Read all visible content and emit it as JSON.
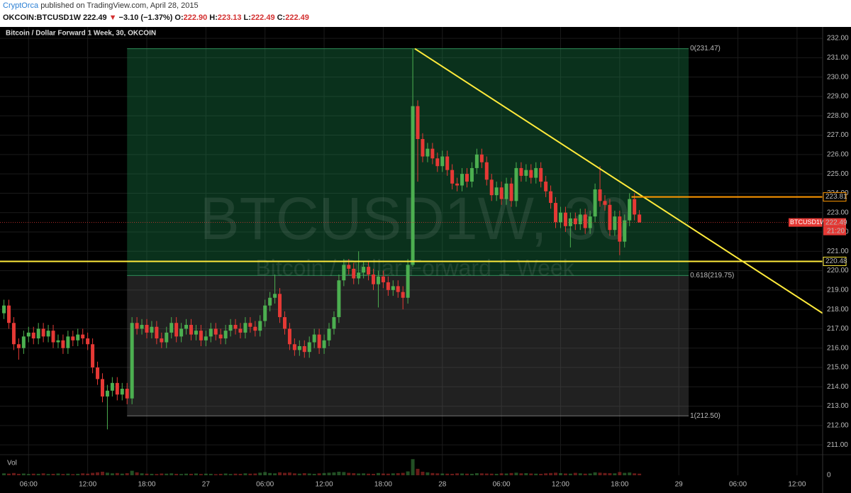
{
  "header": {
    "author": "CryptOrca",
    "published": "published on TradingView.com, April 28, 2015",
    "symbol": "OKCOIN:BTCUSD1W",
    "price": "222.49",
    "arrow": "▼",
    "change": "−3.10 (−1.37%)",
    "ohlc": [
      {
        "key": "O:",
        "value": "222.90"
      },
      {
        "key": "H:",
        "value": "223.13"
      },
      {
        "key": "L:",
        "value": "222.49"
      },
      {
        "key": "C:",
        "value": "222.49"
      }
    ]
  },
  "chart_data": {
    "type": "candlestick",
    "title": "Bitcoin / Dollar Forward 1 Week, 30, OKCOIN",
    "watermark": {
      "symbol": "BTCUSD1W, 30",
      "name": "Bitcoin / Dollar Forward 1 Week"
    },
    "up_color": "#4caf50",
    "down_color": "#e53935",
    "x": [
      3.5,
      4,
      4.5,
      5,
      5.5,
      6,
      6.5,
      7,
      7.5,
      8,
      8.5,
      9,
      9.5,
      10,
      10.5,
      11,
      11.5,
      12,
      12.5,
      13,
      13.5,
      14,
      14.5,
      15,
      15.5,
      16,
      16.5,
      17,
      17.5,
      18,
      18.5,
      19,
      19.5,
      20,
      20.5,
      21,
      21.5,
      22,
      22.5,
      23,
      23.5,
      24,
      24.5,
      25,
      25.5,
      26,
      26.5,
      27,
      27.5,
      28,
      28.5,
      29,
      29.5,
      30,
      30.5,
      31,
      31.5,
      32,
      32.5,
      33,
      33.5,
      34,
      34.5,
      35,
      35.5,
      36,
      36.5,
      37,
      37.5,
      38,
      38.5,
      39,
      39.5,
      40,
      40.5,
      41,
      41.5,
      42,
      42.5,
      43,
      43.5,
      44,
      44.5,
      45,
      45.5,
      46,
      46.5,
      47,
      47.5,
      48,
      48.5,
      49,
      49.5,
      50,
      50.5,
      51,
      51.5,
      52,
      52.5,
      53,
      53.5,
      54,
      54.5,
      55,
      55.5,
      56,
      56.5,
      57,
      57.5,
      58,
      58.5,
      59,
      59.5,
      60,
      60.5,
      61,
      61.5,
      62,
      62.5,
      63,
      63.5,
      64,
      64.5,
      65,
      65.5,
      66,
      66.5,
      67,
      67.5,
      68
    ],
    "open": [
      217.8,
      218.2,
      217.3,
      216.2,
      216.0,
      216.6,
      216.8,
      216.5,
      217.0,
      216.6,
      216.9,
      216.3,
      216.4,
      216.0,
      216.6,
      216.4,
      216.7,
      216.5,
      216.2,
      215.0,
      214.4,
      213.5,
      213.8,
      214.2,
      213.6,
      213.9,
      213.4,
      217.3,
      217.0,
      217.2,
      216.8,
      217.1,
      216.5,
      216.3,
      216.8,
      217.3,
      216.6,
      217.0,
      217.2,
      216.7,
      216.9,
      216.4,
      216.6,
      217.0,
      216.7,
      216.5,
      216.9,
      217.2,
      217.0,
      216.8,
      217.3,
      217.1,
      216.9,
      217.4,
      218.2,
      218.6,
      218.8,
      217.6,
      217.0,
      216.2,
      215.9,
      216.1,
      215.8,
      216.3,
      216.7,
      216.0,
      216.4,
      217.0,
      217.6,
      219.5,
      220.3,
      220.1,
      219.6,
      219.9,
      220.2,
      219.8,
      219.3,
      219.7,
      219.4,
      219.0,
      219.2,
      218.9,
      218.6,
      220.3,
      228.5,
      226.8,
      225.9,
      226.3,
      225.8,
      225.4,
      225.9,
      225.2,
      224.5,
      224.4,
      225.0,
      224.6,
      225.3,
      226.0,
      225.6,
      224.7,
      223.9,
      224.3,
      223.7,
      224.5,
      223.6,
      225.3,
      224.9,
      225.2,
      224.8,
      225.3,
      224.6,
      224.1,
      223.5,
      222.5,
      223.0,
      222.3,
      222.7,
      222.4,
      222.9,
      222.2,
      222.8,
      224.2,
      223.6,
      223.4,
      222.1,
      222.8,
      221.5,
      222.6,
      223.7,
      222.9
    ],
    "high": [
      218.5,
      218.5,
      217.6,
      216.5,
      216.9,
      217.1,
      217.1,
      217.3,
      217.3,
      217.2,
      217.2,
      216.7,
      216.7,
      216.9,
      216.9,
      217.0,
      217.0,
      216.8,
      216.5,
      215.3,
      214.7,
      214.1,
      214.5,
      214.5,
      214.2,
      214.2,
      217.6,
      217.6,
      217.5,
      217.5,
      217.4,
      217.4,
      216.8,
      217.1,
      217.6,
      217.6,
      217.3,
      217.5,
      217.5,
      217.2,
      217.2,
      216.9,
      217.3,
      217.3,
      217.0,
      217.2,
      217.5,
      217.5,
      217.3,
      217.6,
      217.6,
      217.4,
      217.7,
      218.5,
      218.9,
      219.8,
      219.1,
      217.9,
      217.3,
      216.5,
      216.4,
      216.4,
      216.6,
      217.0,
      217.0,
      216.7,
      217.3,
      217.9,
      219.8,
      220.6,
      220.6,
      220.4,
      221.0,
      220.5,
      220.5,
      220.1,
      220.0,
      220.0,
      219.7,
      219.5,
      219.5,
      219.2,
      220.6,
      231.47,
      228.8,
      227.1,
      226.6,
      226.6,
      226.1,
      226.2,
      226.2,
      225.5,
      224.8,
      225.3,
      225.3,
      225.6,
      226.3,
      226.3,
      225.9,
      225.0,
      224.6,
      224.6,
      224.8,
      224.8,
      225.6,
      225.6,
      225.5,
      225.5,
      225.6,
      225.6,
      224.9,
      224.4,
      223.8,
      223.3,
      223.3,
      223.0,
      223.0,
      223.2,
      223.2,
      223.1,
      224.5,
      225.4,
      223.9,
      223.7,
      223.1,
      223.1,
      222.9,
      224.0,
      224.0,
      223.13
    ],
    "low": [
      217.5,
      217.0,
      215.9,
      215.4,
      215.7,
      216.3,
      216.2,
      216.2,
      216.3,
      216.3,
      216.0,
      216.0,
      215.7,
      215.7,
      216.1,
      216.1,
      216.2,
      215.9,
      214.7,
      214.1,
      213.2,
      211.8,
      213.5,
      213.3,
      213.3,
      213.1,
      213.1,
      216.7,
      216.7,
      216.5,
      216.5,
      216.2,
      216.0,
      216.0,
      216.5,
      216.3,
      216.3,
      216.7,
      216.4,
      216.4,
      216.1,
      216.1,
      216.3,
      216.4,
      216.2,
      216.2,
      216.6,
      216.7,
      216.5,
      216.5,
      216.8,
      216.6,
      216.6,
      217.1,
      217.9,
      218.3,
      217.3,
      216.7,
      215.9,
      215.6,
      215.6,
      215.5,
      215.5,
      216.0,
      215.7,
      215.7,
      216.1,
      216.7,
      217.3,
      219.2,
      219.8,
      219.3,
      219.3,
      219.6,
      219.5,
      219.0,
      218.1,
      219.1,
      218.7,
      218.7,
      218.6,
      218.0,
      218.3,
      220.2,
      224.6,
      225.6,
      225.6,
      225.5,
      225.1,
      225.1,
      224.9,
      224.2,
      224.1,
      224.1,
      224.3,
      224.3,
      225.0,
      225.3,
      224.4,
      223.6,
      223.6,
      223.4,
      223.4,
      223.3,
      223.3,
      224.6,
      224.6,
      224.5,
      224.5,
      224.3,
      223.8,
      223.2,
      222.2,
      222.2,
      222.0,
      221.2,
      222.1,
      222.1,
      221.9,
      221.9,
      222.5,
      223.3,
      223.1,
      221.8,
      221.8,
      220.8,
      221.2,
      222.3,
      222.6,
      222.49
    ],
    "close": [
      218.2,
      217.3,
      216.2,
      216.0,
      216.6,
      216.8,
      216.5,
      217.0,
      216.6,
      216.9,
      216.3,
      216.4,
      216.0,
      216.6,
      216.4,
      216.7,
      216.5,
      216.2,
      215.0,
      214.4,
      213.5,
      213.8,
      214.2,
      213.6,
      213.9,
      213.4,
      217.3,
      217.0,
      217.2,
      216.8,
      217.1,
      216.5,
      216.3,
      216.8,
      217.3,
      216.6,
      217.0,
      217.2,
      216.7,
      216.9,
      216.4,
      216.6,
      217.0,
      216.7,
      216.5,
      216.9,
      217.2,
      217.0,
      216.8,
      217.3,
      217.1,
      216.9,
      217.4,
      218.2,
      218.6,
      218.8,
      217.6,
      217.0,
      216.2,
      215.9,
      216.1,
      215.8,
      216.3,
      216.7,
      216.0,
      216.4,
      217.0,
      217.6,
      219.5,
      220.3,
      220.1,
      219.6,
      219.9,
      220.2,
      219.8,
      219.3,
      219.7,
      219.4,
      219.0,
      219.2,
      218.9,
      218.6,
      220.3,
      228.5,
      226.8,
      225.9,
      226.3,
      225.8,
      225.4,
      225.9,
      225.2,
      224.5,
      224.4,
      225.0,
      224.6,
      225.3,
      226.0,
      225.6,
      224.7,
      223.9,
      224.3,
      223.7,
      224.5,
      223.6,
      225.3,
      224.9,
      225.2,
      224.8,
      225.3,
      224.6,
      224.1,
      223.5,
      222.5,
      223.0,
      222.3,
      222.7,
      222.4,
      222.9,
      222.2,
      222.8,
      224.2,
      223.6,
      223.4,
      222.1,
      222.8,
      221.5,
      222.6,
      223.7,
      222.9,
      222.49
    ],
    "volume_label": "Vol",
    "volume": [
      12,
      10,
      14,
      9,
      11,
      8,
      10,
      9,
      12,
      8,
      9,
      11,
      8,
      10,
      7,
      9,
      12,
      10,
      15,
      18,
      22,
      16,
      12,
      14,
      10,
      13,
      28,
      18,
      12,
      10,
      9,
      8,
      11,
      10,
      12,
      9,
      8,
      10,
      9,
      11,
      8,
      10,
      9,
      7,
      9,
      11,
      8,
      10,
      9,
      12,
      10,
      11,
      16,
      20,
      14,
      12,
      18,
      15,
      17,
      12,
      10,
      13,
      11,
      9,
      12,
      14,
      16,
      18,
      22,
      20,
      15,
      13,
      11,
      12,
      10,
      9,
      14,
      11,
      10,
      12,
      13,
      15,
      24,
      100,
      40,
      22,
      18,
      14,
      12,
      11,
      10,
      9,
      12,
      11,
      10,
      9,
      13,
      12,
      11,
      10,
      9,
      12,
      11,
      14,
      16,
      12,
      13,
      11,
      10,
      9,
      12,
      14,
      16,
      13,
      11,
      10,
      15,
      12,
      10,
      11,
      18,
      16,
      14,
      13,
      12,
      20,
      15,
      17,
      12,
      10
    ],
    "volume_ylim": [
      0,
      110
    ],
    "volume_yticks": [
      0
    ],
    "xlim": [
      3.1,
      86.6
    ],
    "xticks": [
      {
        "value": 6,
        "label": "06:00"
      },
      {
        "value": 12,
        "label": "12:00"
      },
      {
        "value": 18,
        "label": "18:00"
      },
      {
        "value": 24,
        "label": "27"
      },
      {
        "value": 30,
        "label": "06:00"
      },
      {
        "value": 36,
        "label": "12:00"
      },
      {
        "value": 42,
        "label": "18:00"
      },
      {
        "value": 48,
        "label": "28"
      },
      {
        "value": 54,
        "label": "06:00"
      },
      {
        "value": 60,
        "label": "12:00"
      },
      {
        "value": 66,
        "label": "18:00"
      },
      {
        "value": 72,
        "label": "29"
      },
      {
        "value": 78,
        "label": "06:00"
      },
      {
        "value": 84,
        "label": "12:00"
      }
    ],
    "ylim": [
      210.53,
      232.59
    ],
    "yticks": [
      {
        "value": 211,
        "label": "211.00"
      },
      {
        "value": 212,
        "label": "212.00"
      },
      {
        "value": 213,
        "label": "213.00"
      },
      {
        "value": 214,
        "label": "214.00"
      },
      {
        "value": 215,
        "label": "215.00"
      },
      {
        "value": 216,
        "label": "216.00"
      },
      {
        "value": 217,
        "label": "217.00"
      },
      {
        "value": 218,
        "label": "218.00"
      },
      {
        "value": 219,
        "label": "219.00"
      },
      {
        "value": 220,
        "label": "220.00"
      },
      {
        "value": 221,
        "label": "221.00"
      },
      {
        "value": 222,
        "label": "222.00"
      },
      {
        "value": 223,
        "label": "223.00"
      },
      {
        "value": 224,
        "label": "224.00"
      },
      {
        "value": 225,
        "label": "225.00"
      },
      {
        "value": 226,
        "label": "226.00"
      },
      {
        "value": 227,
        "label": "227.00"
      },
      {
        "value": 228,
        "label": "228.00"
      },
      {
        "value": 229,
        "label": "229.00"
      },
      {
        "value": 230,
        "label": "230.00"
      },
      {
        "value": 231,
        "label": "231.00"
      },
      {
        "value": 232,
        "label": "232.00"
      }
    ],
    "grid": true,
    "fib": {
      "x": [
        16,
        73
      ],
      "levels": [
        {
          "value": 231.47,
          "label": "0(231.47)"
        },
        {
          "value": 219.75,
          "label": "0.618(219.75)"
        },
        {
          "value": 212.5,
          "label": "1(212.50)"
        }
      ]
    },
    "trendline": {
      "x": [
        45.2,
        86.6
      ],
      "y": [
        231.47,
        217.8
      ],
      "color": "#ffeb3b"
    },
    "hlines": [
      {
        "value": 220.48,
        "color": "#ffeb3b"
      },
      {
        "value": 223.81,
        "color": "#ff9800",
        "x_start": 67.2
      }
    ],
    "last": {
      "value": 222.49,
      "name": "BTCUSD1W",
      "countdown": "21:20",
      "color": "#e53935"
    }
  }
}
